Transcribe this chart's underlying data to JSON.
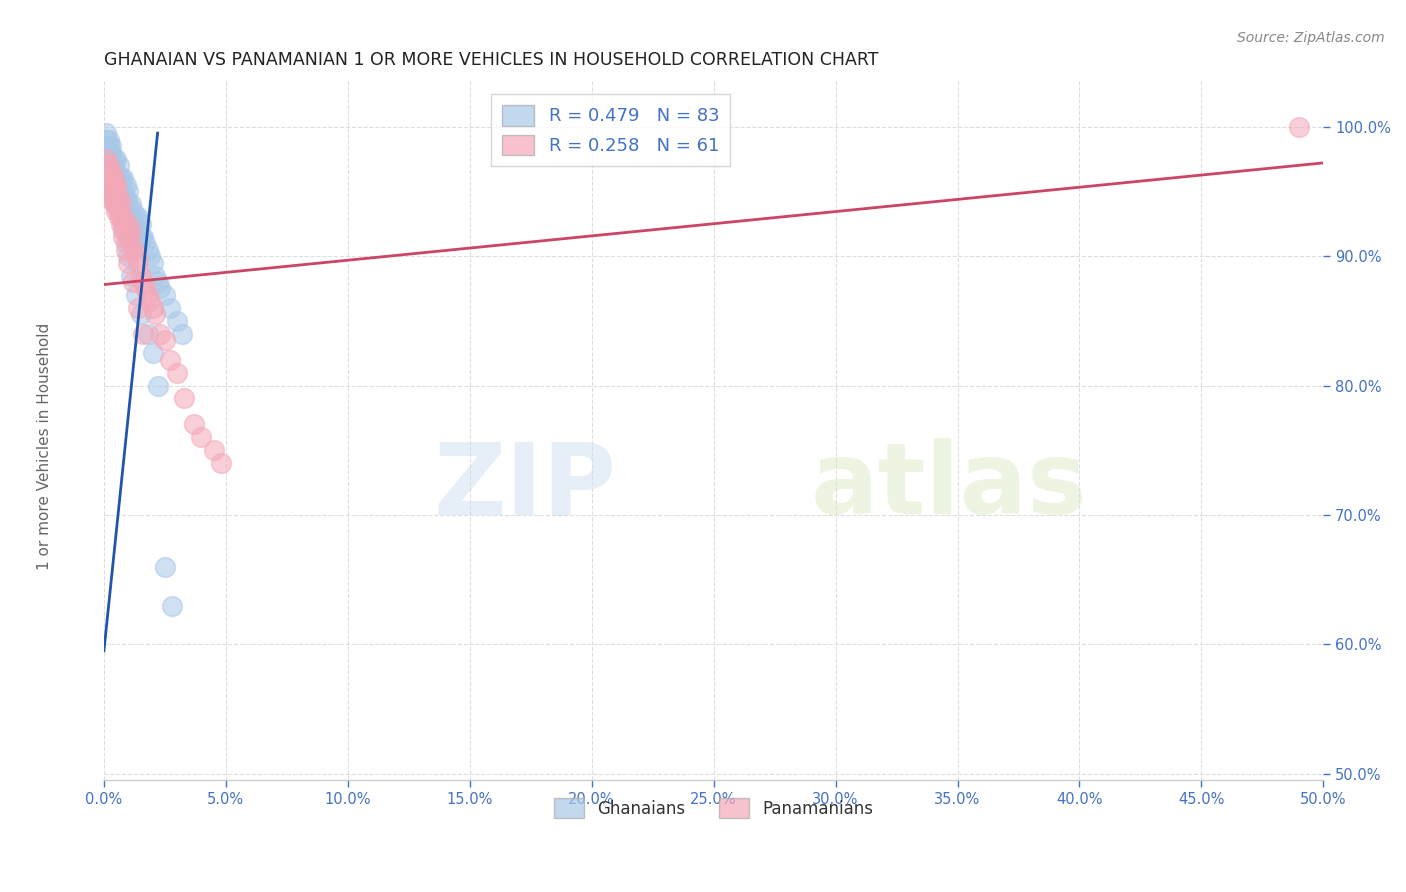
{
  "title": "GHANAIAN VS PANAMANIAN 1 OR MORE VEHICLES IN HOUSEHOLD CORRELATION CHART",
  "source": "Source: ZipAtlas.com",
  "xlabel_label": "Ghanaians",
  "ylabel_label": "Panamanians",
  "ylabel_axis": "1 or more Vehicles in Household",
  "blue_R": 0.479,
  "blue_N": 83,
  "pink_R": 0.258,
  "pink_N": 61,
  "xlim": [
    0.0,
    0.5
  ],
  "ylim": [
    0.495,
    1.035
  ],
  "xticks": [
    0.0,
    0.05,
    0.1,
    0.15,
    0.2,
    0.25,
    0.3,
    0.35,
    0.4,
    0.45,
    0.5
  ],
  "yticks": [
    0.5,
    0.6,
    0.7,
    0.8,
    0.9,
    1.0
  ],
  "ytick_labels": [
    "50.0%",
    "60.0%",
    "70.0%",
    "80.0%",
    "90.0%",
    "100.0%"
  ],
  "xtick_labels": [
    "0.0%",
    "5.0%",
    "10.0%",
    "15.0%",
    "20.0%",
    "25.0%",
    "30.0%",
    "35.0%",
    "40.0%",
    "45.0%",
    "50.0%"
  ],
  "blue_color": "#a8c8e8",
  "pink_color": "#f4a8b8",
  "blue_line_color": "#2255aa",
  "pink_line_color": "#cc4466",
  "watermark_zip": "ZIP",
  "watermark_atlas": "atlas",
  "blue_x": [
    0.001,
    0.001,
    0.002,
    0.002,
    0.002,
    0.003,
    0.003,
    0.003,
    0.003,
    0.003,
    0.004,
    0.004,
    0.004,
    0.004,
    0.005,
    0.005,
    0.005,
    0.005,
    0.006,
    0.006,
    0.006,
    0.006,
    0.007,
    0.007,
    0.007,
    0.008,
    0.008,
    0.008,
    0.009,
    0.009,
    0.009,
    0.01,
    0.01,
    0.01,
    0.011,
    0.011,
    0.012,
    0.012,
    0.013,
    0.013,
    0.014,
    0.014,
    0.015,
    0.015,
    0.016,
    0.017,
    0.018,
    0.019,
    0.02,
    0.021,
    0.022,
    0.023,
    0.025,
    0.027,
    0.03,
    0.032,
    0.001,
    0.001,
    0.002,
    0.002,
    0.002,
    0.003,
    0.003,
    0.003,
    0.004,
    0.004,
    0.005,
    0.005,
    0.006,
    0.006,
    0.007,
    0.007,
    0.008,
    0.009,
    0.01,
    0.011,
    0.013,
    0.015,
    0.018,
    0.02,
    0.022,
    0.025,
    0.028
  ],
  "blue_y": [
    0.955,
    0.975,
    0.96,
    0.97,
    0.985,
    0.95,
    0.96,
    0.97,
    0.98,
    0.985,
    0.945,
    0.96,
    0.97,
    0.975,
    0.94,
    0.955,
    0.965,
    0.975,
    0.94,
    0.95,
    0.96,
    0.97,
    0.94,
    0.95,
    0.96,
    0.935,
    0.95,
    0.96,
    0.93,
    0.945,
    0.955,
    0.93,
    0.94,
    0.95,
    0.93,
    0.94,
    0.925,
    0.935,
    0.92,
    0.93,
    0.92,
    0.93,
    0.915,
    0.925,
    0.915,
    0.91,
    0.905,
    0.9,
    0.895,
    0.885,
    0.88,
    0.875,
    0.87,
    0.86,
    0.85,
    0.84,
    0.99,
    0.995,
    0.975,
    0.98,
    0.99,
    0.965,
    0.97,
    0.975,
    0.96,
    0.965,
    0.955,
    0.96,
    0.945,
    0.955,
    0.94,
    0.95,
    0.92,
    0.91,
    0.9,
    0.885,
    0.87,
    0.855,
    0.84,
    0.825,
    0.8,
    0.66,
    0.63
  ],
  "pink_x": [
    0.001,
    0.001,
    0.002,
    0.002,
    0.003,
    0.003,
    0.003,
    0.004,
    0.004,
    0.004,
    0.005,
    0.005,
    0.005,
    0.006,
    0.006,
    0.007,
    0.007,
    0.008,
    0.008,
    0.009,
    0.01,
    0.01,
    0.011,
    0.011,
    0.012,
    0.013,
    0.014,
    0.015,
    0.016,
    0.017,
    0.018,
    0.019,
    0.02,
    0.021,
    0.023,
    0.025,
    0.027,
    0.03,
    0.033,
    0.037,
    0.04,
    0.045,
    0.048,
    0.001,
    0.002,
    0.002,
    0.003,
    0.003,
    0.004,
    0.004,
    0.005,
    0.005,
    0.006,
    0.007,
    0.008,
    0.009,
    0.01,
    0.012,
    0.014,
    0.016,
    0.49
  ],
  "pink_y": [
    0.96,
    0.97,
    0.95,
    0.96,
    0.945,
    0.955,
    0.965,
    0.94,
    0.95,
    0.96,
    0.935,
    0.945,
    0.955,
    0.935,
    0.945,
    0.93,
    0.94,
    0.92,
    0.93,
    0.92,
    0.915,
    0.925,
    0.91,
    0.92,
    0.905,
    0.9,
    0.895,
    0.885,
    0.88,
    0.875,
    0.87,
    0.865,
    0.86,
    0.855,
    0.84,
    0.835,
    0.82,
    0.81,
    0.79,
    0.77,
    0.76,
    0.75,
    0.74,
    0.975,
    0.96,
    0.97,
    0.955,
    0.965,
    0.945,
    0.955,
    0.94,
    0.95,
    0.93,
    0.925,
    0.915,
    0.905,
    0.895,
    0.88,
    0.86,
    0.84,
    1.0
  ],
  "blue_trendline_x": [
    0.0,
    0.022
  ],
  "blue_trendline_y": [
    0.595,
    0.995
  ],
  "pink_trendline_x": [
    0.0,
    0.5
  ],
  "pink_trendline_y": [
    0.878,
    0.972
  ]
}
